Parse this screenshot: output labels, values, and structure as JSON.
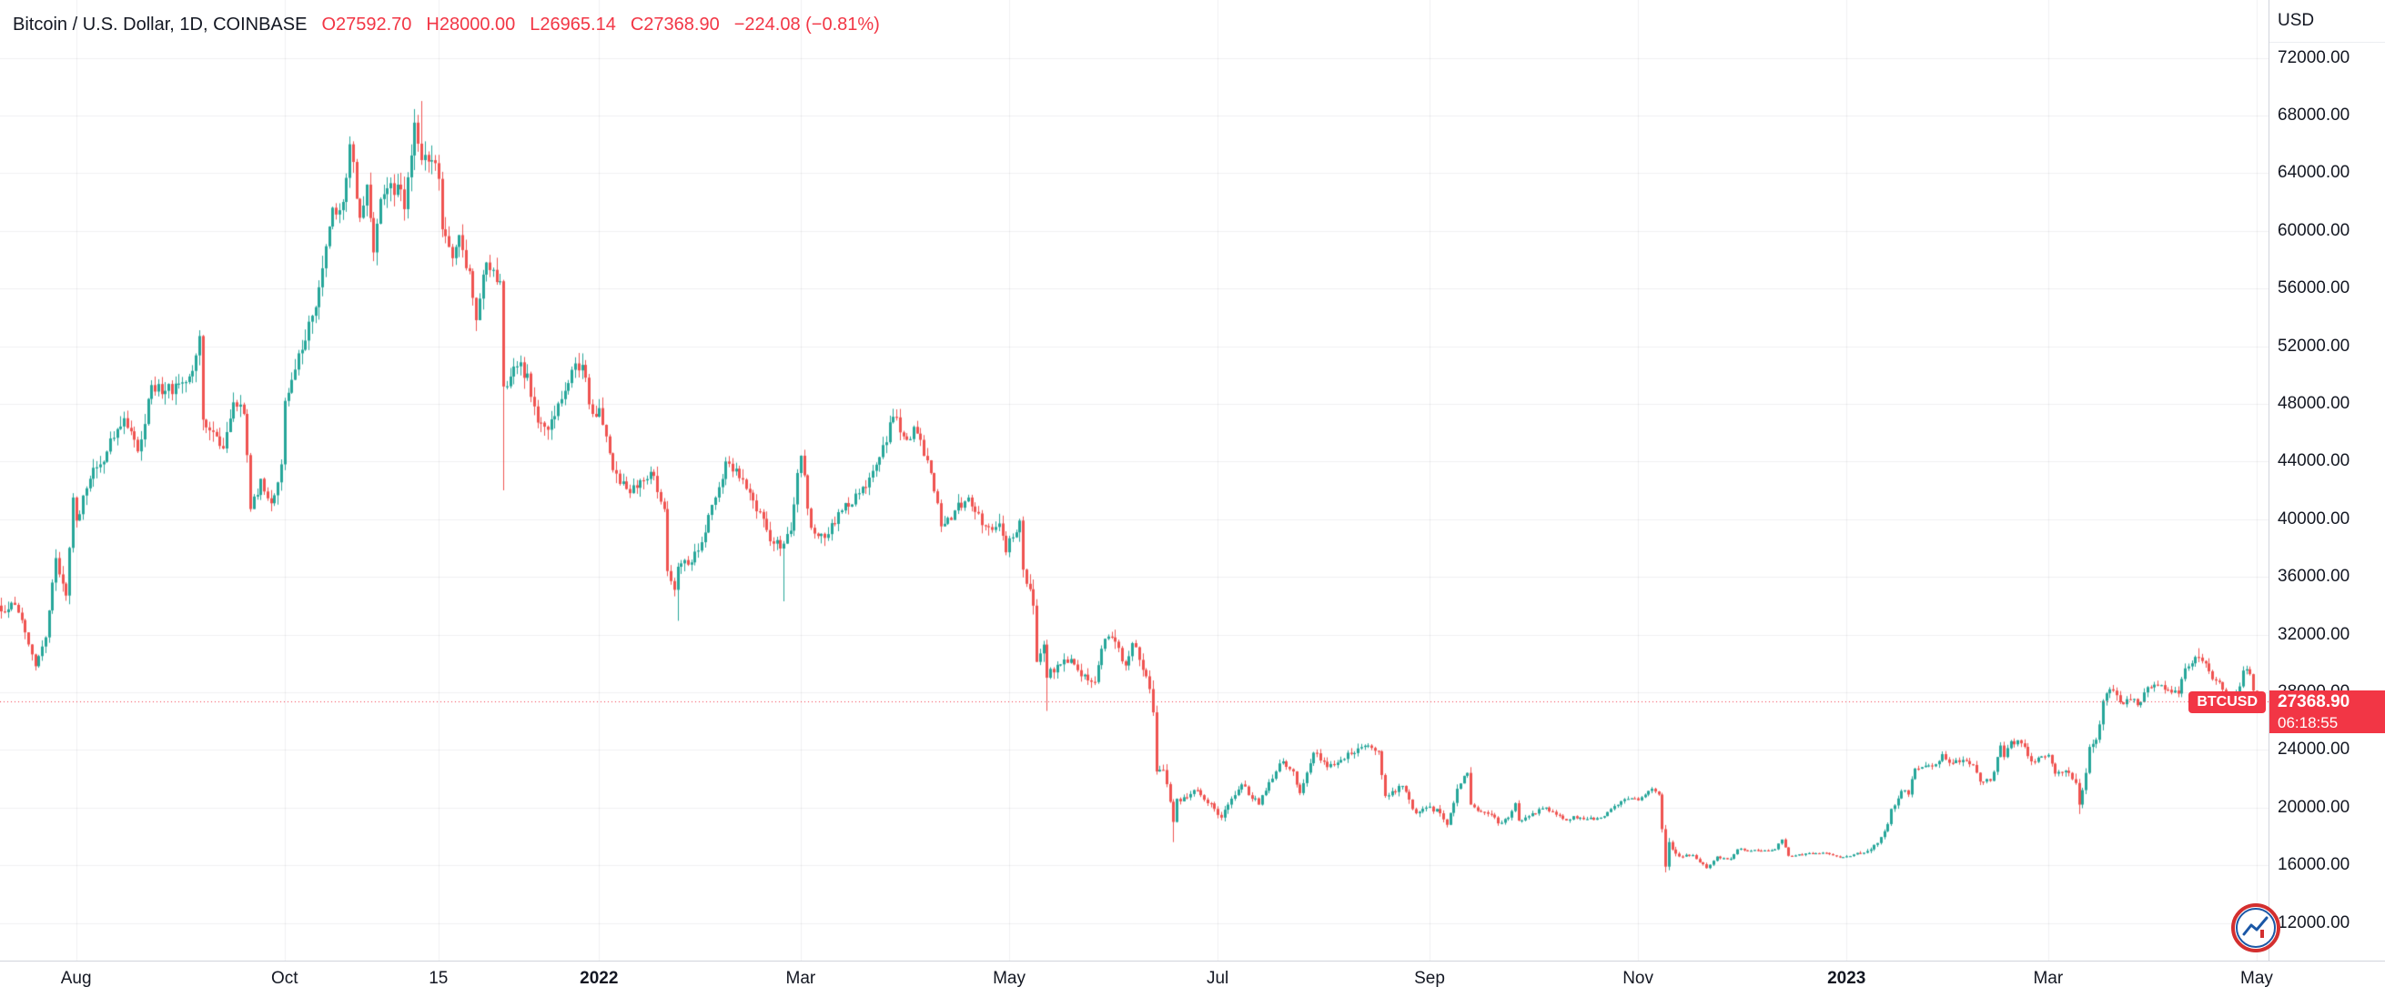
{
  "colors": {
    "up": "#26a69a",
    "down": "#ef5350",
    "accent": "#f23645",
    "grid": "rgba(42,46,57,0.07)",
    "text": "#131722",
    "axis_line": "#d1d4dc",
    "background": "#ffffff"
  },
  "legend": {
    "title": "Bitcoin / U.S. Dollar, 1D, COINBASE",
    "ohlc": [
      {
        "k": "O",
        "v": "27592.70"
      },
      {
        "k": "H",
        "v": "28000.00"
      },
      {
        "k": "L",
        "v": "26965.14"
      },
      {
        "k": "C",
        "v": "27368.90"
      }
    ],
    "change": "−224.08 (−0.81%)"
  },
  "price_axis": {
    "currency_label": "USD",
    "ticks": [
      "72000.00",
      "68000.00",
      "64000.00",
      "60000.00",
      "56000.00",
      "52000.00",
      "48000.00",
      "44000.00",
      "40000.00",
      "36000.00",
      "32000.00",
      "28000.00",
      "24000.00",
      "20000.00",
      "16000.00",
      "12000.00"
    ]
  },
  "time_axis": {
    "ticks": [
      {
        "label": "Aug",
        "day": 22,
        "emph": false
      },
      {
        "label": "Oct",
        "day": 83,
        "emph": false
      },
      {
        "label": "15",
        "day": 128,
        "emph": false
      },
      {
        "label": "2022",
        "day": 175,
        "emph": true
      },
      {
        "label": "Mar",
        "day": 234,
        "emph": false
      },
      {
        "label": "May",
        "day": 295,
        "emph": false
      },
      {
        "label": "Jul",
        "day": 356,
        "emph": false
      },
      {
        "label": "Sep",
        "day": 418,
        "emph": false
      },
      {
        "label": "Nov",
        "day": 479,
        "emph": false
      },
      {
        "label": "2023",
        "day": 540,
        "emph": true
      },
      {
        "label": "Mar",
        "day": 599,
        "emph": false
      },
      {
        "label": "May",
        "day": 660,
        "emph": false
      }
    ]
  },
  "price_label": {
    "symbol": "BTCUSD",
    "price": "27368.90",
    "countdown": "06:18:55"
  },
  "chart_data": {
    "type": "candlestick",
    "symbol": "BTCUSD",
    "exchange": "COINBASE",
    "interval": "1D",
    "title": "Bitcoin / U.S. Dollar",
    "start_date": "2021-07-10",
    "days": 662,
    "ylim_labeled": [
      12000,
      72000
    ],
    "y_tick_step": 4000,
    "grid": true,
    "last_candle": {
      "open": 27592.7,
      "high": 28000.0,
      "low": 26965.14,
      "close": 27368.9,
      "change": -224.08,
      "change_pct": -0.81
    },
    "close_anchors": [
      [
        0,
        33600
      ],
      [
        3,
        34200
      ],
      [
        6,
        33000
      ],
      [
        10,
        29800
      ],
      [
        13,
        31800
      ],
      [
        16,
        37300
      ],
      [
        19,
        34700
      ],
      [
        21,
        41500
      ],
      [
        22,
        39900
      ],
      [
        26,
        42800
      ],
      [
        29,
        43800
      ],
      [
        32,
        45600
      ],
      [
        36,
        47000
      ],
      [
        40,
        44700
      ],
      [
        44,
        49300
      ],
      [
        48,
        48900
      ],
      [
        55,
        49900
      ],
      [
        58,
        52700
      ],
      [
        59,
        46900
      ],
      [
        62,
        46050
      ],
      [
        65,
        44900
      ],
      [
        68,
        48100
      ],
      [
        71,
        47300
      ],
      [
        73,
        40700
      ],
      [
        76,
        42800
      ],
      [
        79,
        41100
      ],
      [
        82,
        43800
      ],
      [
        83,
        48200
      ],
      [
        87,
        51500
      ],
      [
        92,
        54700
      ],
      [
        94,
        57400
      ],
      [
        97,
        61600
      ],
      [
        100,
        62000
      ],
      [
        102,
        66000
      ],
      [
        105,
        60900
      ],
      [
        107,
        63200
      ],
      [
        109,
        58500
      ],
      [
        111,
        62200
      ],
      [
        116,
        63200
      ],
      [
        118,
        61500
      ],
      [
        121,
        67500
      ],
      [
        123,
        64900
      ],
      [
        125,
        64800
      ],
      [
        128,
        63600
      ],
      [
        129,
        60100
      ],
      [
        132,
        58100
      ],
      [
        134,
        59700
      ],
      [
        137,
        57200
      ],
      [
        139,
        53800
      ],
      [
        142,
        57800
      ],
      [
        146,
        56500
      ],
      [
        147,
        49200
      ],
      [
        151,
        50600
      ],
      [
        154,
        50100
      ],
      [
        157,
        46700
      ],
      [
        160,
        46200
      ],
      [
        165,
        48900
      ],
      [
        168,
        50800
      ],
      [
        170,
        50700
      ],
      [
        173,
        47300
      ],
      [
        175,
        47700
      ],
      [
        179,
        43400
      ],
      [
        184,
        41800
      ],
      [
        187,
        42700
      ],
      [
        191,
        43000
      ],
      [
        194,
        40700
      ],
      [
        195,
        36400
      ],
      [
        197,
        35100
      ],
      [
        198,
        36700
      ],
      [
        202,
        37000
      ],
      [
        205,
        38400
      ],
      [
        209,
        41500
      ],
      [
        212,
        44000
      ],
      [
        215,
        43500
      ],
      [
        218,
        42100
      ],
      [
        222,
        40500
      ],
      [
        226,
        38300
      ],
      [
        229,
        38300
      ],
      [
        231,
        39200
      ],
      [
        233,
        43200
      ],
      [
        234,
        44400
      ],
      [
        237,
        39400
      ],
      [
        241,
        38700
      ],
      [
        246,
        40600
      ],
      [
        251,
        41800
      ],
      [
        253,
        42200
      ],
      [
        257,
        44300
      ],
      [
        261,
        47100
      ],
      [
        265,
        45500
      ],
      [
        267,
        46400
      ],
      [
        269,
        45500
      ],
      [
        272,
        43200
      ],
      [
        275,
        39500
      ],
      [
        279,
        40600
      ],
      [
        283,
        41500
      ],
      [
        285,
        40500
      ],
      [
        289,
        39450
      ],
      [
        292,
        39700
      ],
      [
        294,
        37700
      ],
      [
        298,
        39900
      ],
      [
        299,
        36500
      ],
      [
        302,
        34000
      ],
      [
        303,
        30100
      ],
      [
        305,
        31300
      ],
      [
        306,
        29000
      ],
      [
        309,
        29900
      ],
      [
        313,
        30300
      ],
      [
        316,
        29100
      ],
      [
        320,
        28700
      ],
      [
        323,
        31700
      ],
      [
        325,
        31800
      ],
      [
        329,
        29850
      ],
      [
        331,
        31400
      ],
      [
        335,
        29100
      ],
      [
        337,
        26600
      ],
      [
        338,
        22500
      ],
      [
        340,
        22600
      ],
      [
        342,
        20400
      ],
      [
        343,
        19000
      ],
      [
        344,
        20600
      ],
      [
        347,
        20700
      ],
      [
        350,
        21200
      ],
      [
        353,
        20300
      ],
      [
        355,
        19900
      ],
      [
        357,
        19300
      ],
      [
        359,
        20200
      ],
      [
        363,
        21600
      ],
      [
        368,
        20200
      ],
      [
        373,
        22500
      ],
      [
        375,
        23200
      ],
      [
        378,
        22500
      ],
      [
        380,
        21000
      ],
      [
        384,
        23800
      ],
      [
        388,
        22800
      ],
      [
        392,
        23300
      ],
      [
        394,
        23800
      ],
      [
        397,
        24100
      ],
      [
        400,
        24300
      ],
      [
        403,
        23900
      ],
      [
        405,
        20800
      ],
      [
        410,
        21500
      ],
      [
        414,
        19600
      ],
      [
        417,
        20000
      ],
      [
        421,
        19600
      ],
      [
        423,
        18800
      ],
      [
        426,
        21300
      ],
      [
        429,
        22400
      ],
      [
        430,
        20200
      ],
      [
        433,
        19700
      ],
      [
        436,
        19500
      ],
      [
        438,
        18900
      ],
      [
        441,
        19300
      ],
      [
        443,
        20300
      ],
      [
        444,
        19100
      ],
      [
        447,
        19400
      ],
      [
        452,
        20000
      ],
      [
        455,
        19500
      ],
      [
        458,
        19100
      ],
      [
        460,
        19400
      ],
      [
        464,
        19200
      ],
      [
        468,
        19300
      ],
      [
        472,
        20100
      ],
      [
        476,
        20600
      ],
      [
        479,
        20500
      ],
      [
        482,
        21150
      ],
      [
        483,
        21300
      ],
      [
        485,
        20900
      ],
      [
        486,
        18500
      ],
      [
        487,
        15900
      ],
      [
        488,
        17600
      ],
      [
        490,
        16800
      ],
      [
        492,
        16600
      ],
      [
        495,
        16700
      ],
      [
        497,
        16200
      ],
      [
        499,
        15800
      ],
      [
        502,
        16600
      ],
      [
        506,
        16450
      ],
      [
        508,
        17100
      ],
      [
        512,
        17000
      ],
      [
        515,
        16970
      ],
      [
        519,
        17100
      ],
      [
        521,
        17780
      ],
      [
        523,
        16650
      ],
      [
        526,
        16750
      ],
      [
        530,
        16820
      ],
      [
        534,
        16840
      ],
      [
        538,
        16540
      ],
      [
        540,
        16620
      ],
      [
        544,
        16850
      ],
      [
        547,
        17100
      ],
      [
        550,
        17950
      ],
      [
        552,
        18850
      ],
      [
        553,
        19900
      ],
      [
        556,
        21150
      ],
      [
        558,
        20900
      ],
      [
        560,
        22700
      ],
      [
        563,
        22900
      ],
      [
        566,
        23000
      ],
      [
        568,
        23700
      ],
      [
        570,
        23100
      ],
      [
        574,
        23300
      ],
      [
        577,
        22950
      ],
      [
        579,
        21800
      ],
      [
        582,
        21850
      ],
      [
        585,
        24300
      ],
      [
        586,
        23500
      ],
      [
        588,
        24600
      ],
      [
        591,
        24450
      ],
      [
        594,
        23200
      ],
      [
        597,
        23550
      ],
      [
        599,
        23650
      ],
      [
        601,
        22350
      ],
      [
        605,
        22400
      ],
      [
        607,
        21700
      ],
      [
        608,
        20200
      ],
      [
        610,
        22400
      ],
      [
        611,
        24200
      ],
      [
        613,
        24700
      ],
      [
        615,
        27400
      ],
      [
        617,
        28200
      ],
      [
        620,
        27300
      ],
      [
        623,
        27500
      ],
      [
        625,
        27100
      ],
      [
        628,
        28350
      ],
      [
        631,
        28450
      ],
      [
        634,
        28170
      ],
      [
        637,
        27900
      ],
      [
        639,
        29650
      ],
      [
        641,
        30000
      ],
      [
        643,
        30400
      ],
      [
        646,
        29450
      ],
      [
        648,
        28800
      ],
      [
        651,
        27800
      ],
      [
        653,
        27500
      ],
      [
        655,
        28400
      ],
      [
        656,
        29500
      ],
      [
        658,
        29250
      ],
      [
        659,
        28100
      ],
      [
        660,
        27592.98
      ]
    ],
    "volatility_anchors": [
      [
        0,
        1.1
      ],
      [
        60,
        1.0
      ],
      [
        102,
        1.0
      ],
      [
        128,
        1.05
      ],
      [
        150,
        0.95
      ],
      [
        175,
        1.0
      ],
      [
        234,
        0.95
      ],
      [
        270,
        0.8
      ],
      [
        298,
        1.15
      ],
      [
        306,
        1.35
      ],
      [
        320,
        0.9
      ],
      [
        338,
        1.4
      ],
      [
        345,
        1.0
      ],
      [
        360,
        0.9
      ],
      [
        384,
        0.85
      ],
      [
        405,
        0.9
      ],
      [
        430,
        0.95
      ],
      [
        447,
        0.6
      ],
      [
        470,
        0.5
      ],
      [
        483,
        0.7
      ],
      [
        486,
        1.5
      ],
      [
        490,
        0.8
      ],
      [
        500,
        0.5
      ],
      [
        510,
        0.4
      ],
      [
        525,
        0.35
      ],
      [
        539,
        0.3
      ],
      [
        547,
        0.6
      ],
      [
        553,
        0.9
      ],
      [
        560,
        0.8
      ],
      [
        580,
        0.8
      ],
      [
        600,
        0.7
      ],
      [
        608,
        1.2
      ],
      [
        615,
        1.0
      ],
      [
        630,
        0.7
      ],
      [
        643,
        0.8
      ],
      [
        661,
        0.7
      ]
    ],
    "wick_events": [
      {
        "day": 123,
        "high": 69000
      },
      {
        "day": 147,
        "low": 42000
      },
      {
        "day": 198,
        "low": 32950
      },
      {
        "day": 229,
        "low": 34300
      },
      {
        "day": 306,
        "low": 26700
      },
      {
        "day": 343,
        "low": 17600
      },
      {
        "day": 430,
        "high": 22800
      },
      {
        "day": 487,
        "low": 15500
      },
      {
        "day": 608,
        "low": 19550
      },
      {
        "day": 643,
        "high": 31050
      }
    ]
  }
}
